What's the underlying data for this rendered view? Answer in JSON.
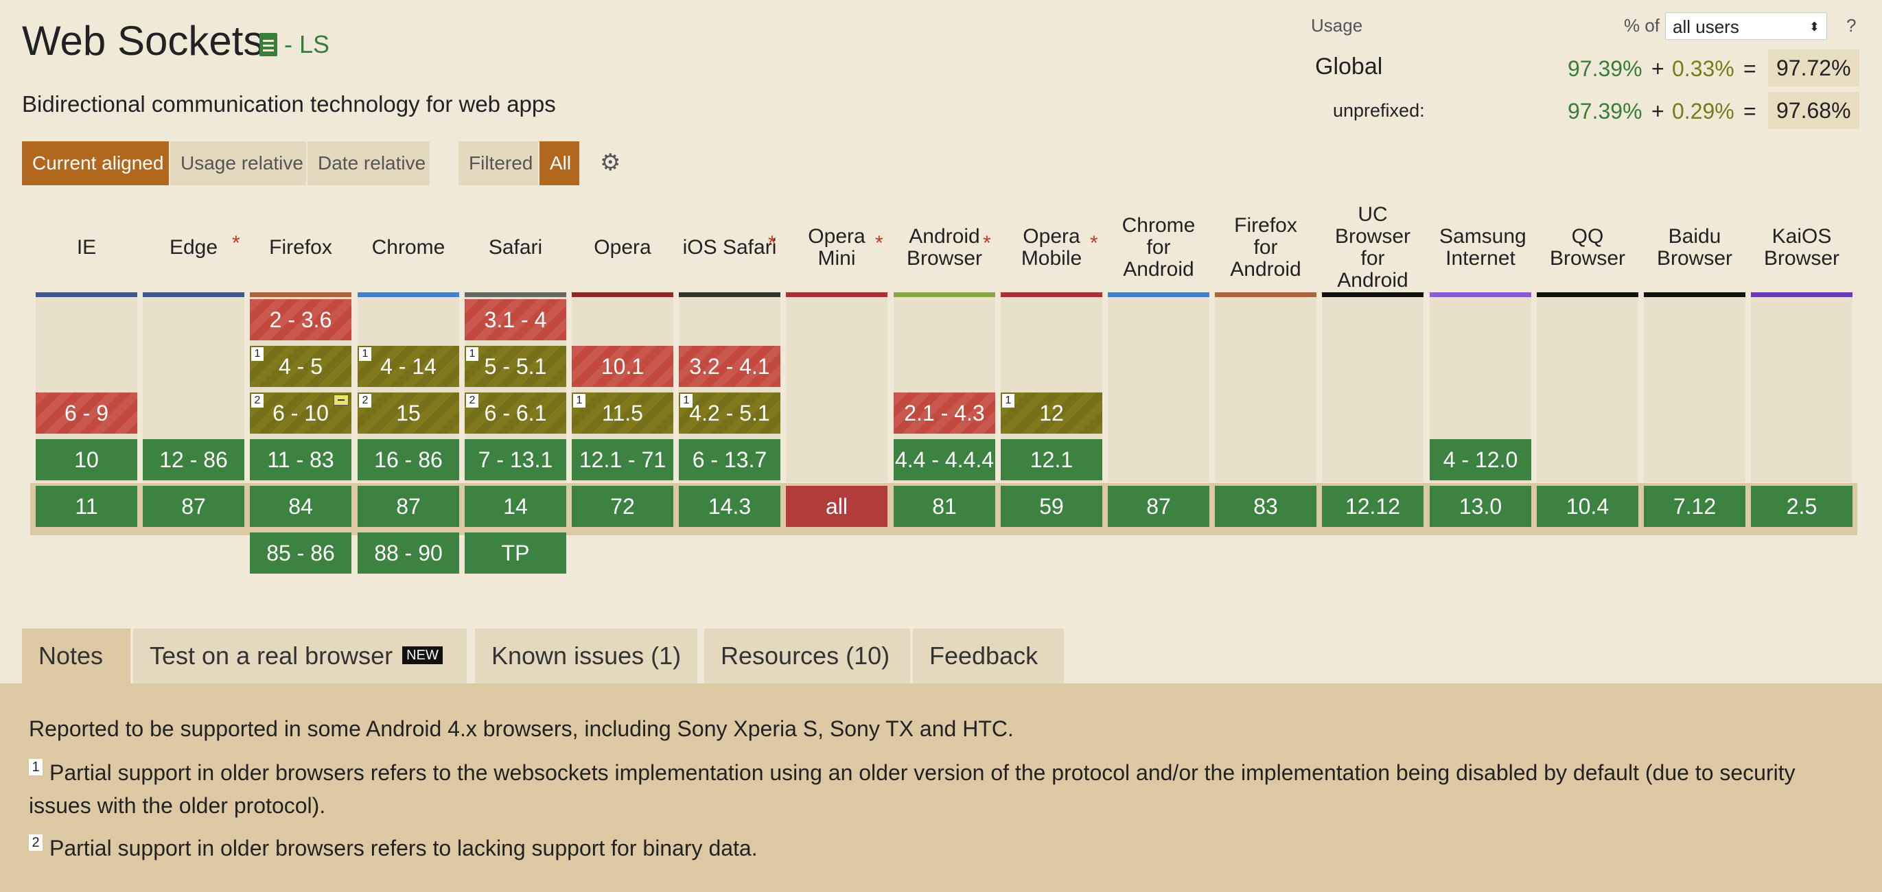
{
  "header": {
    "title": "Web Sockets",
    "spec_status": "- LS",
    "description": "Bidirectional communication technology for web apps"
  },
  "usage": {
    "label": "Usage",
    "pct_of_label": "% of",
    "user_filter": "all users",
    "help": "?",
    "global": {
      "label": "Global",
      "supported": "97.39%",
      "plus": "+",
      "partial": "0.33%",
      "equals": "=",
      "total": "97.72%"
    },
    "unprefixed": {
      "label": "unprefixed:",
      "supported": "97.39%",
      "plus": "+",
      "partial": "0.29%",
      "equals": "=",
      "total": "97.68%"
    }
  },
  "view_buttons": {
    "current_aligned": "Current aligned",
    "usage_relative": "Usage relative",
    "date_relative": "Date relative",
    "filtered": "Filtered",
    "all": "All"
  },
  "icons": {
    "gear": "gear-icon",
    "spec": "document-icon",
    "select_arrows": "updown-arrow-icon"
  },
  "colors": {
    "supported": "#3c8240",
    "unsupported": "#c44a40",
    "partial": "#807a1c",
    "accent": "#b2671f"
  },
  "browsers": [
    {
      "name": "IE",
      "star": false,
      "color": "#3d5a8a",
      "cells": [
        null,
        null,
        {
          "v": "6 - 9",
          "s": "n"
        },
        {
          "v": "10",
          "s": "y"
        },
        {
          "v": "11",
          "s": "y"
        },
        null
      ]
    },
    {
      "name": "Edge",
      "star": true,
      "color": "#3d5a8a",
      "cells": [
        null,
        null,
        null,
        {
          "v": "12 - 86",
          "s": "y"
        },
        {
          "v": "87",
          "s": "y"
        },
        null
      ]
    },
    {
      "name": "Firefox",
      "star": false,
      "color": "#a8643a",
      "cells": [
        {
          "v": "2 - 3.6",
          "s": "n"
        },
        {
          "v": "4 - 5",
          "s": "a",
          "note": "1"
        },
        {
          "v": "6 - 10",
          "s": "a",
          "note": "2",
          "flag": true
        },
        {
          "v": "11 - 83",
          "s": "y"
        },
        {
          "v": "84",
          "s": "y"
        },
        {
          "v": "85 - 86",
          "s": "y"
        }
      ]
    },
    {
      "name": "Chrome",
      "star": false,
      "color": "#4a7fc8",
      "cells": [
        null,
        {
          "v": "4 - 14",
          "s": "a",
          "note": "1"
        },
        {
          "v": "15",
          "s": "a",
          "note": "2"
        },
        {
          "v": "16 - 86",
          "s": "y"
        },
        {
          "v": "87",
          "s": "y"
        },
        {
          "v": "88 - 90",
          "s": "y"
        }
      ]
    },
    {
      "name": "Safari",
      "star": false,
      "color": "#666666",
      "cells": [
        {
          "v": "3.1 - 4",
          "s": "n"
        },
        {
          "v": "5 - 5.1",
          "s": "a",
          "note": "1"
        },
        {
          "v": "6 - 6.1",
          "s": "a",
          "note": "2"
        },
        {
          "v": "7 - 13.1",
          "s": "y"
        },
        {
          "v": "14",
          "s": "y"
        },
        {
          "v": "TP",
          "s": "y"
        }
      ]
    },
    {
      "name": "Opera",
      "star": false,
      "color": "#8a2a2a",
      "cells": [
        null,
        {
          "v": "10.1",
          "s": "n"
        },
        {
          "v": "11.5",
          "s": "a",
          "note": "1"
        },
        {
          "v": "12.1 - 71",
          "s": "y"
        },
        {
          "v": "72",
          "s": "y"
        },
        null
      ]
    },
    {
      "name": "iOS Safari",
      "star": true,
      "color": "#333333",
      "cells": [
        null,
        {
          "v": "3.2 - 4.1",
          "s": "n"
        },
        {
          "v": "4.2 - 5.1",
          "s": "a",
          "note": "1"
        },
        {
          "v": "6 - 13.7",
          "s": "y"
        },
        {
          "v": "14.3",
          "s": "y"
        },
        null
      ]
    },
    {
      "name": "Opera Mini",
      "star": true,
      "color": "#a83232",
      "cells": [
        null,
        null,
        null,
        null,
        {
          "v": "all",
          "s": "u"
        },
        null
      ]
    },
    {
      "name": "Android Browser",
      "star": true,
      "color": "#86a84a",
      "cells": [
        null,
        null,
        {
          "v": "2.1 - 4.3",
          "s": "n"
        },
        {
          "v": "4.4 - 4.4.4",
          "s": "y"
        },
        {
          "v": "81",
          "s": "y"
        },
        null
      ]
    },
    {
      "name": "Opera Mobile",
      "star": true,
      "color": "#a83232",
      "cells": [
        null,
        null,
        {
          "v": "12",
          "s": "a",
          "note": "1"
        },
        {
          "v": "12.1",
          "s": "y"
        },
        {
          "v": "59",
          "s": "y"
        },
        null
      ]
    },
    {
      "name": "Chrome for Android",
      "star": false,
      "color": "#4a7fc8",
      "cells": [
        null,
        null,
        null,
        null,
        {
          "v": "87",
          "s": "y"
        },
        null
      ]
    },
    {
      "name": "Firefox for Android",
      "star": false,
      "color": "#a8643a",
      "cells": [
        null,
        null,
        null,
        null,
        {
          "v": "83",
          "s": "y"
        },
        null
      ]
    },
    {
      "name": "UC Browser for Android",
      "star": false,
      "color": "#111111",
      "cells": [
        null,
        null,
        null,
        null,
        {
          "v": "12.12",
          "s": "y"
        },
        null
      ]
    },
    {
      "name": "Samsung Internet",
      "star": false,
      "color": "#8a5ad8",
      "cells": [
        null,
        null,
        null,
        {
          "v": "4 - 12.0",
          "s": "y"
        },
        {
          "v": "13.0",
          "s": "y"
        },
        null
      ]
    },
    {
      "name": "QQ Browser",
      "star": false,
      "color": "#111111",
      "cells": [
        null,
        null,
        null,
        null,
        {
          "v": "10.4",
          "s": "y"
        },
        null
      ]
    },
    {
      "name": "Baidu Browser",
      "star": false,
      "color": "#111111",
      "cells": [
        null,
        null,
        null,
        null,
        {
          "v": "7.12",
          "s": "y"
        },
        null
      ]
    },
    {
      "name": "KaiOS Browser",
      "star": false,
      "color": "#6a3ab8",
      "cells": [
        null,
        null,
        null,
        null,
        {
          "v": "2.5",
          "s": "y"
        },
        null
      ]
    }
  ],
  "tabs": {
    "notes": "Notes",
    "test": "Test on a real browser",
    "new_badge": "NEW",
    "known_issues": "Known issues (1)",
    "resources": "Resources (10)",
    "feedback": "Feedback"
  },
  "notes": {
    "general": "Reported to be supported in some Android 4.x browsers, including Sony Xperia S, Sony TX and HTC.",
    "n1_num": "1",
    "n1": "Partial support in older browsers refers to the websockets implementation using an older version of the protocol and/or the implementation being disabled by default (due to security issues with the older protocol).",
    "n2_num": "2",
    "n2": "Partial support in older browsers refers to lacking support for binary data."
  }
}
